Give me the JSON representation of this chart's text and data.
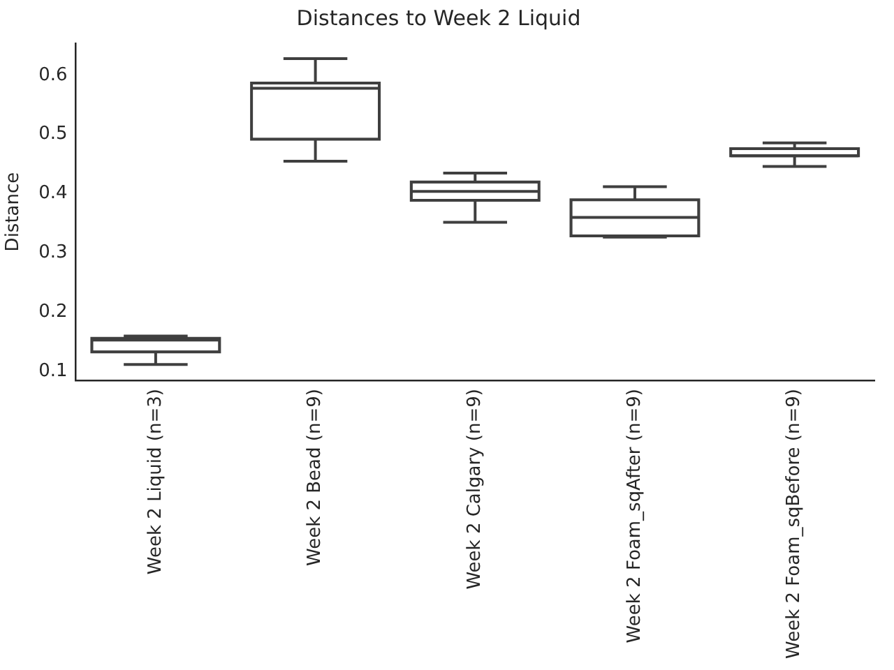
{
  "chart_data": {
    "type": "box",
    "title": "Distances to Week 2 Liquid",
    "ylabel": "Distance",
    "categories": [
      "Week 2 Liquid (n=3)",
      "Week 2 Bead (n=9)",
      "Week 2 Calgary (n=9)",
      "Week 2 Foam_sqAfter (n=9)",
      "Week 2 Foam_sqBefore (n=9)"
    ],
    "boxes": [
      {
        "low": 0.112,
        "q1": 0.133,
        "median": 0.153,
        "q3": 0.156,
        "high": 0.16
      },
      {
        "low": 0.455,
        "q1": 0.492,
        "median": 0.578,
        "q3": 0.587,
        "high": 0.628
      },
      {
        "low": 0.352,
        "q1": 0.389,
        "median": 0.404,
        "q3": 0.42,
        "high": 0.435
      },
      {
        "low": 0.327,
        "q1": 0.329,
        "median": 0.36,
        "q3": 0.39,
        "high": 0.412
      },
      {
        "low": 0.446,
        "q1": 0.464,
        "median": 0.464,
        "q3": 0.476,
        "high": 0.486
      }
    ],
    "color": "#3f3f3f",
    "ylim": [
      0.085,
      0.654
    ],
    "yticks": [
      0.1,
      0.2,
      0.3,
      0.4,
      0.5,
      0.6
    ]
  }
}
